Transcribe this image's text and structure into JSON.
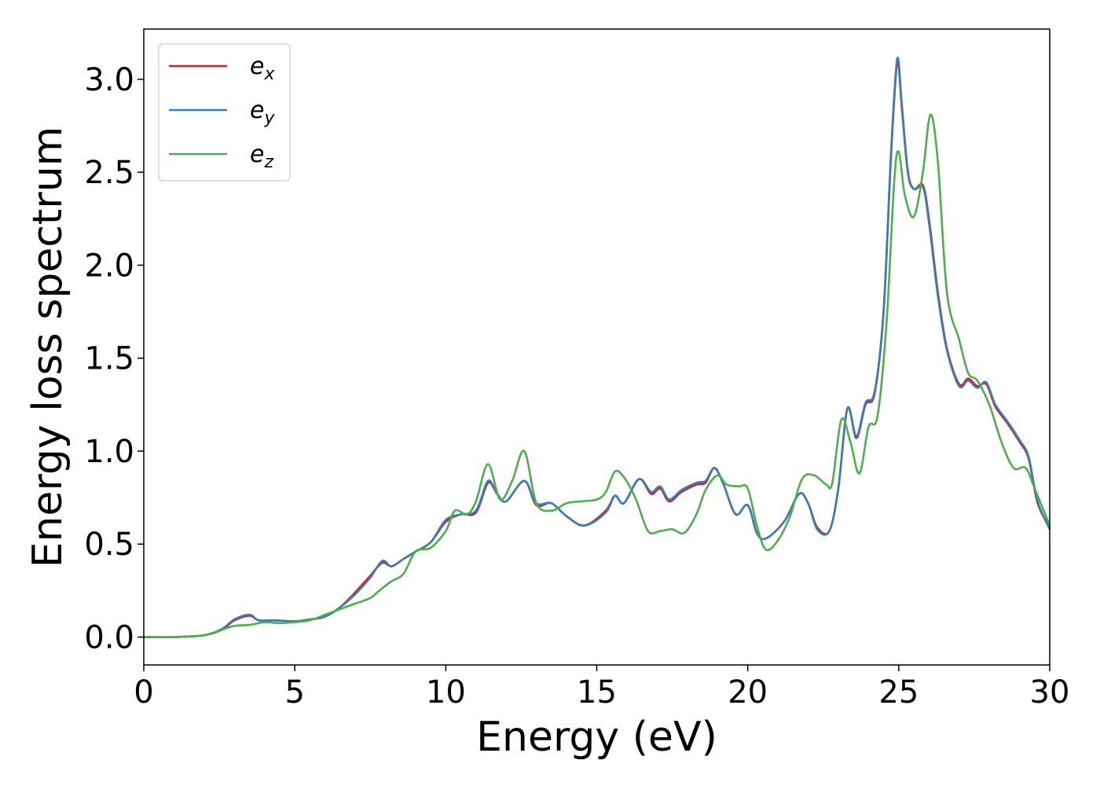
{
  "chart_data": {
    "type": "line",
    "xlabel": "Energy (eV)",
    "ylabel": "Energy loss spectrum",
    "xlim": [
      0,
      30
    ],
    "ylim": [
      -0.15,
      3.27
    ],
    "xticks": [
      0,
      5,
      10,
      15,
      20,
      25,
      30
    ],
    "xtick_labels": [
      "0",
      "5",
      "10",
      "15",
      "20",
      "25",
      "30"
    ],
    "yticks": [
      0.0,
      0.5,
      1.0,
      1.5,
      2.0,
      2.5,
      3.0
    ],
    "ytick_labels": [
      "0.0",
      "0.5",
      "1.0",
      "1.5",
      "2.0",
      "2.5",
      "3.0"
    ],
    "grid": false,
    "legend_position": "top-left",
    "series": [
      {
        "name": "e_x",
        "legend_base": "e",
        "legend_sub": "x",
        "color": "#e41a1c",
        "points": [
          [
            0,
            0
          ],
          [
            1,
            0.0
          ],
          [
            2,
            0.01
          ],
          [
            2.6,
            0.04
          ],
          [
            3.0,
            0.09
          ],
          [
            3.5,
            0.115
          ],
          [
            3.8,
            0.09
          ],
          [
            4.3,
            0.09
          ],
          [
            5.0,
            0.085
          ],
          [
            5.5,
            0.095
          ],
          [
            6.0,
            0.11
          ],
          [
            6.5,
            0.16
          ],
          [
            7.0,
            0.24
          ],
          [
            7.5,
            0.33
          ],
          [
            7.9,
            0.4
          ],
          [
            8.2,
            0.38
          ],
          [
            8.6,
            0.42
          ],
          [
            9.0,
            0.46
          ],
          [
            9.5,
            0.51
          ],
          [
            10.0,
            0.62
          ],
          [
            10.5,
            0.66
          ],
          [
            11.0,
            0.67
          ],
          [
            11.4,
            0.83
          ],
          [
            11.7,
            0.77
          ],
          [
            12.0,
            0.73
          ],
          [
            12.6,
            0.84
          ],
          [
            13.0,
            0.71
          ],
          [
            13.5,
            0.72
          ],
          [
            14.0,
            0.65
          ],
          [
            14.6,
            0.6
          ],
          [
            15.3,
            0.68
          ],
          [
            15.6,
            0.76
          ],
          [
            15.9,
            0.72
          ],
          [
            16.4,
            0.85
          ],
          [
            16.8,
            0.77
          ],
          [
            17.1,
            0.8
          ],
          [
            17.4,
            0.73
          ],
          [
            17.8,
            0.78
          ],
          [
            18.3,
            0.82
          ],
          [
            18.6,
            0.83
          ],
          [
            18.9,
            0.91
          ],
          [
            19.2,
            0.82
          ],
          [
            19.6,
            0.66
          ],
          [
            20.0,
            0.71
          ],
          [
            20.3,
            0.56
          ],
          [
            20.6,
            0.53
          ],
          [
            21.2,
            0.62
          ],
          [
            21.7,
            0.77
          ],
          [
            22.0,
            0.72
          ],
          [
            22.3,
            0.59
          ],
          [
            22.7,
            0.57
          ],
          [
            23.0,
            0.8
          ],
          [
            23.3,
            1.23
          ],
          [
            23.6,
            1.07
          ],
          [
            23.9,
            1.25
          ],
          [
            24.2,
            1.31
          ],
          [
            24.5,
            1.75
          ],
          [
            24.75,
            2.6
          ],
          [
            24.95,
            3.09
          ],
          [
            25.1,
            2.85
          ],
          [
            25.3,
            2.5
          ],
          [
            25.5,
            2.41
          ],
          [
            25.8,
            2.43
          ],
          [
            26.0,
            2.25
          ],
          [
            26.3,
            1.85
          ],
          [
            26.6,
            1.55
          ],
          [
            27.0,
            1.36
          ],
          [
            27.3,
            1.39
          ],
          [
            27.6,
            1.35
          ],
          [
            27.9,
            1.36
          ],
          [
            28.2,
            1.24
          ],
          [
            28.6,
            1.15
          ],
          [
            29.0,
            1.05
          ],
          [
            29.3,
            0.96
          ],
          [
            29.6,
            0.72
          ],
          [
            30.0,
            0.59
          ]
        ]
      },
      {
        "name": "e_y",
        "legend_base": "e",
        "legend_sub": "y",
        "color": "#377eb8",
        "points": [
          [
            0,
            0
          ],
          [
            1,
            0.0
          ],
          [
            2,
            0.01
          ],
          [
            2.6,
            0.045
          ],
          [
            3.0,
            0.095
          ],
          [
            3.5,
            0.12
          ],
          [
            3.8,
            0.09
          ],
          [
            4.3,
            0.09
          ],
          [
            5.0,
            0.085
          ],
          [
            5.5,
            0.095
          ],
          [
            6.0,
            0.11
          ],
          [
            6.5,
            0.16
          ],
          [
            7.0,
            0.23
          ],
          [
            7.5,
            0.32
          ],
          [
            7.9,
            0.41
          ],
          [
            8.2,
            0.38
          ],
          [
            8.6,
            0.42
          ],
          [
            9.0,
            0.46
          ],
          [
            9.5,
            0.51
          ],
          [
            10.0,
            0.63
          ],
          [
            10.5,
            0.66
          ],
          [
            11.0,
            0.68
          ],
          [
            11.4,
            0.84
          ],
          [
            11.7,
            0.77
          ],
          [
            12.0,
            0.73
          ],
          [
            12.6,
            0.84
          ],
          [
            13.0,
            0.72
          ],
          [
            13.5,
            0.72
          ],
          [
            14.0,
            0.65
          ],
          [
            14.6,
            0.6
          ],
          [
            15.3,
            0.67
          ],
          [
            15.6,
            0.76
          ],
          [
            15.9,
            0.72
          ],
          [
            16.4,
            0.85
          ],
          [
            16.8,
            0.78
          ],
          [
            17.1,
            0.81
          ],
          [
            17.4,
            0.74
          ],
          [
            17.8,
            0.79
          ],
          [
            18.3,
            0.83
          ],
          [
            18.6,
            0.84
          ],
          [
            18.9,
            0.91
          ],
          [
            19.2,
            0.82
          ],
          [
            19.6,
            0.66
          ],
          [
            20.0,
            0.71
          ],
          [
            20.3,
            0.56
          ],
          [
            20.6,
            0.53
          ],
          [
            21.2,
            0.62
          ],
          [
            21.7,
            0.77
          ],
          [
            22.0,
            0.72
          ],
          [
            22.3,
            0.58
          ],
          [
            22.7,
            0.57
          ],
          [
            23.0,
            0.8
          ],
          [
            23.3,
            1.23
          ],
          [
            23.6,
            1.08
          ],
          [
            23.9,
            1.26
          ],
          [
            24.2,
            1.32
          ],
          [
            24.5,
            1.76
          ],
          [
            24.75,
            2.62
          ],
          [
            24.95,
            3.11
          ],
          [
            25.1,
            2.87
          ],
          [
            25.3,
            2.51
          ],
          [
            25.5,
            2.41
          ],
          [
            25.8,
            2.42
          ],
          [
            26.0,
            2.23
          ],
          [
            26.3,
            1.83
          ],
          [
            26.6,
            1.54
          ],
          [
            27.0,
            1.35
          ],
          [
            27.3,
            1.38
          ],
          [
            27.6,
            1.34
          ],
          [
            27.9,
            1.37
          ],
          [
            28.2,
            1.25
          ],
          [
            28.6,
            1.16
          ],
          [
            29.0,
            1.06
          ],
          [
            29.3,
            0.97
          ],
          [
            29.6,
            0.73
          ],
          [
            30.0,
            0.58
          ]
        ]
      },
      {
        "name": "e_z",
        "legend_base": "e",
        "legend_sub": "z",
        "color": "#4daf4a",
        "points": [
          [
            0,
            0
          ],
          [
            1,
            0.0
          ],
          [
            2,
            0.01
          ],
          [
            2.6,
            0.04
          ],
          [
            3.0,
            0.06
          ],
          [
            3.5,
            0.065
          ],
          [
            4.0,
            0.08
          ],
          [
            4.5,
            0.075
          ],
          [
            5.0,
            0.08
          ],
          [
            5.5,
            0.09
          ],
          [
            6.0,
            0.12
          ],
          [
            6.5,
            0.15
          ],
          [
            7.0,
            0.18
          ],
          [
            7.5,
            0.21
          ],
          [
            7.8,
            0.25
          ],
          [
            8.2,
            0.3
          ],
          [
            8.6,
            0.34
          ],
          [
            9.0,
            0.46
          ],
          [
            9.5,
            0.48
          ],
          [
            10.0,
            0.57
          ],
          [
            10.3,
            0.68
          ],
          [
            10.7,
            0.66
          ],
          [
            11.0,
            0.73
          ],
          [
            11.4,
            0.93
          ],
          [
            11.8,
            0.74
          ],
          [
            12.2,
            0.84
          ],
          [
            12.6,
            1.0
          ],
          [
            13.0,
            0.72
          ],
          [
            13.5,
            0.68
          ],
          [
            14.0,
            0.72
          ],
          [
            14.5,
            0.73
          ],
          [
            15.0,
            0.74
          ],
          [
            15.3,
            0.78
          ],
          [
            15.6,
            0.89
          ],
          [
            15.9,
            0.86
          ],
          [
            16.3,
            0.74
          ],
          [
            16.7,
            0.57
          ],
          [
            17.1,
            0.57
          ],
          [
            17.5,
            0.58
          ],
          [
            17.9,
            0.56
          ],
          [
            18.3,
            0.66
          ],
          [
            18.6,
            0.79
          ],
          [
            19.0,
            0.87
          ],
          [
            19.3,
            0.82
          ],
          [
            19.7,
            0.81
          ],
          [
            20.0,
            0.8
          ],
          [
            20.3,
            0.6
          ],
          [
            20.6,
            0.47
          ],
          [
            21.0,
            0.52
          ],
          [
            21.4,
            0.65
          ],
          [
            21.8,
            0.85
          ],
          [
            22.2,
            0.87
          ],
          [
            22.6,
            0.82
          ],
          [
            22.8,
            0.83
          ],
          [
            23.1,
            1.17
          ],
          [
            23.4,
            1.05
          ],
          [
            23.7,
            0.88
          ],
          [
            24.0,
            1.13
          ],
          [
            24.3,
            1.19
          ],
          [
            24.6,
            1.7
          ],
          [
            24.85,
            2.45
          ],
          [
            25.0,
            2.61
          ],
          [
            25.2,
            2.38
          ],
          [
            25.5,
            2.26
          ],
          [
            25.8,
            2.5
          ],
          [
            26.05,
            2.81
          ],
          [
            26.3,
            2.55
          ],
          [
            26.6,
            1.85
          ],
          [
            27.0,
            1.6
          ],
          [
            27.3,
            1.42
          ],
          [
            27.6,
            1.38
          ],
          [
            28.0,
            1.25
          ],
          [
            28.4,
            1.05
          ],
          [
            28.8,
            0.91
          ],
          [
            29.2,
            0.91
          ],
          [
            29.5,
            0.8
          ],
          [
            30.0,
            0.6
          ]
        ]
      }
    ]
  }
}
